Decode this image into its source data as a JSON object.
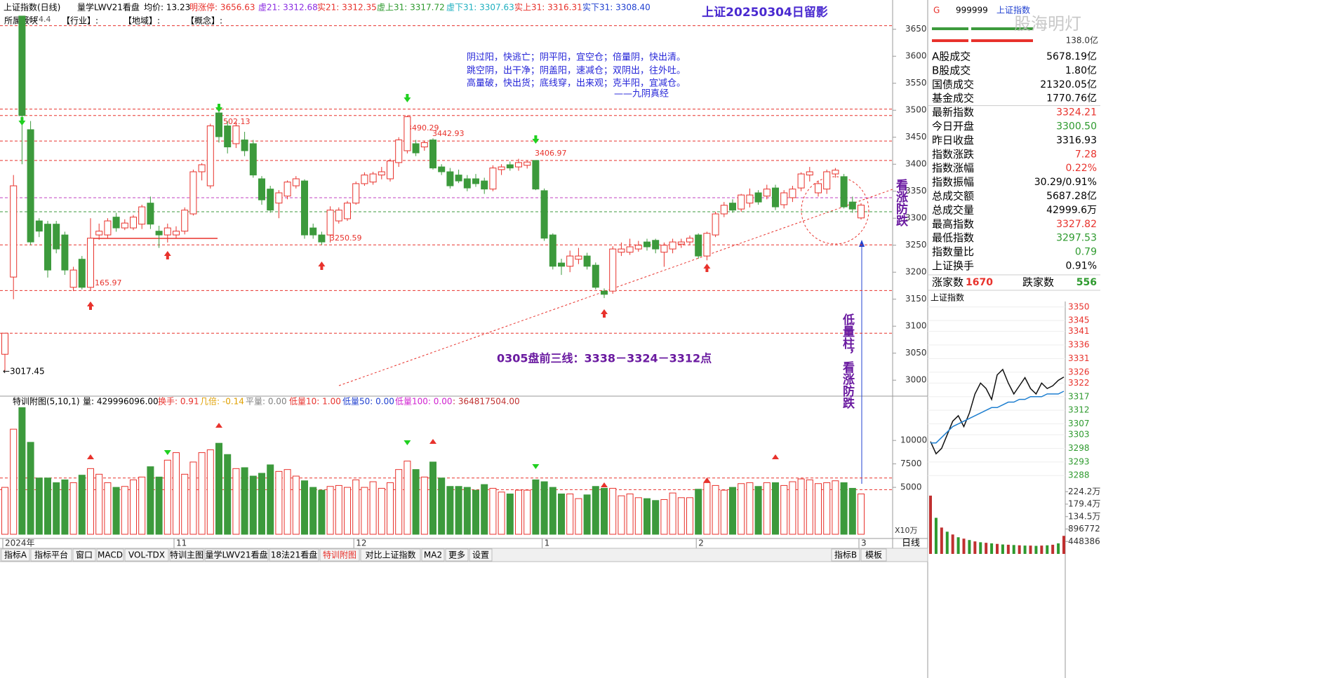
{
  "chart_data": {
    "type": "candlestick",
    "title": "上证20250304日留影",
    "header": [
      {
        "text": "上证指数(日线)",
        "color": "#000000"
      },
      {
        "text": "量学LWV21看盘",
        "color": "#000000"
      },
      {
        "text": "均价: 13.23",
        "color": "#000000"
      },
      {
        "text": "明涨停: 3656.63",
        "color": "#e8322c"
      },
      {
        "text": "虚21: 3312.68",
        "color": "#8a2be2"
      },
      {
        "text": "实21: 3312.35",
        "color": "#e8322c"
      },
      {
        "text": "虚上31: 3317.72",
        "color": "#2e9a2e"
      },
      {
        "text": "虚下31: 3307.63",
        "color": "#20b0c0"
      },
      {
        "text": "实上31: 3316.31",
        "color": "#e8322c"
      },
      {
        "text": "实下31: 3308.40",
        "color": "#2040d0"
      }
    ],
    "subheader": [
      "所属板块",
      "【行业】:",
      "【地域】:",
      "【概念】:"
    ],
    "annotations": [
      {
        "text": "阴过阳，快逃亡；阴平阳，宜空仓；倍量阴，快出清。",
        "color": "#2626d8"
      },
      {
        "text": "跳空阴，出干净；阴盖阳，速减仓；双阴出，往外吐。",
        "color": "#2626d8"
      },
      {
        "text": "高量破，快出货；底线穿，出来观；克半阳，宜减仓。",
        "color": "#2626d8"
      },
      {
        "text": "——九阴真经",
        "color": "#2626d8"
      },
      {
        "text": "0305盘前三线：3338－3324－3312点",
        "color": "#6a1aa0"
      },
      {
        "text": "看涨防跌",
        "color": "#6a1aa0"
      },
      {
        "text": "低量柱，看涨防跌",
        "color": "#6a1aa0"
      },
      {
        "text": "←3017.45",
        "color": "#000000"
      }
    ],
    "price_labels": [
      3502.13,
      3490.29,
      3442.93,
      3406.97,
      3250.59,
      3165.97,
      3674.4
    ],
    "ref_lines": [
      {
        "value": 3656.63,
        "color": "#e8322c"
      },
      {
        "value": 3502.13,
        "color": "#e8322c"
      },
      {
        "value": 3490.29,
        "color": "#e8322c"
      },
      {
        "value": 3442.93,
        "color": "#e8322c"
      },
      {
        "value": 3406.97,
        "color": "#e8322c"
      },
      {
        "value": 3338,
        "color": "#c040c0"
      },
      {
        "value": 3312,
        "color": "#3c9a3c"
      },
      {
        "value": 3250.59,
        "color": "#e8322c"
      },
      {
        "value": 3165.97,
        "color": "#e8322c"
      },
      {
        "value": 3087,
        "color": "#e8322c"
      }
    ],
    "up_color": "#e8322c",
    "down_color": "#3c9a3c",
    "ylim": [
      2973,
      3686
    ],
    "yticks": [
      3650,
      3600,
      3550,
      3500,
      3450,
      3400,
      3350,
      3300,
      3250,
      3200,
      3150,
      3100,
      3050,
      3000
    ],
    "categories": [
      "2024年",
      null,
      null,
      null,
      null,
      null,
      null,
      null,
      null,
      null,
      null,
      null,
      null,
      null,
      null,
      null,
      null,
      null,
      null,
      null,
      "11",
      null,
      null,
      null,
      null,
      null,
      null,
      null,
      null,
      null,
      null,
      null,
      null,
      null,
      null,
      null,
      null,
      null,
      null,
      null,
      null,
      "12",
      null,
      null,
      null,
      null,
      null,
      null,
      null,
      null,
      null,
      null,
      null,
      null,
      null,
      null,
      null,
      null,
      null,
      null,
      null,
      null,
      null,
      "1",
      null,
      null,
      null,
      null,
      null,
      null,
      null,
      null,
      null,
      null,
      null,
      null,
      null,
      null,
      null,
      null,
      null,
      "2",
      null,
      null,
      null,
      null,
      null,
      null,
      null,
      null,
      null,
      null,
      null,
      null,
      null,
      null,
      null,
      null,
      null,
      null,
      "3"
    ],
    "candles": [
      [
        3048,
        3087,
        3017.45,
        3087
      ],
      [
        3191,
        3380,
        3150,
        3360
      ],
      [
        3674.4,
        3674.4,
        3400,
        3490
      ],
      [
        3464,
        3480,
        3250,
        3256
      ],
      [
        3295,
        3300,
        3265,
        3276
      ],
      [
        3289,
        3295,
        3190,
        3204
      ],
      [
        3289,
        3295,
        3235,
        3243
      ],
      [
        3269,
        3275,
        3195,
        3204
      ],
      [
        3172,
        3210,
        3165,
        3204
      ],
      [
        3224,
        3230,
        3168,
        3172
      ],
      [
        3172,
        3300,
        3165.97,
        3263
      ],
      [
        3269,
        3290,
        3260,
        3276
      ],
      [
        3269,
        3300,
        3262,
        3295
      ],
      [
        3302,
        3310,
        3275,
        3282
      ],
      [
        3282,
        3298,
        3278,
        3291
      ],
      [
        3282,
        3306,
        3278,
        3302
      ],
      [
        3289,
        3325,
        3280,
        3321
      ],
      [
        3328,
        3340,
        3280,
        3289
      ],
      [
        3276,
        3286,
        3245,
        3269
      ],
      [
        3269,
        3290,
        3255,
        3282
      ],
      [
        3269,
        3285,
        3262,
        3276
      ],
      [
        3276,
        3320,
        3270,
        3315
      ],
      [
        3308,
        3390,
        3305,
        3386
      ],
      [
        3386,
        3402,
        3370,
        3399
      ],
      [
        3360,
        3475,
        3355,
        3471
      ],
      [
        3495,
        3502.13,
        3440,
        3451
      ],
      [
        3471,
        3480,
        3420,
        3432
      ],
      [
        3438,
        3478,
        3430,
        3471
      ],
      [
        3445,
        3460,
        3415,
        3425
      ],
      [
        3438,
        3445,
        3375,
        3380
      ],
      [
        3373,
        3378,
        3325,
        3334
      ],
      [
        3354,
        3360,
        3310,
        3315
      ],
      [
        3328,
        3352,
        3300,
        3347
      ],
      [
        3341,
        3370,
        3335,
        3367
      ],
      [
        3360,
        3378,
        3355,
        3373
      ],
      [
        3369,
        3372,
        3262,
        3269
      ],
      [
        3282,
        3290,
        3262,
        3269
      ],
      [
        3269,
        3275,
        3250.59,
        3256
      ],
      [
        3269,
        3322,
        3255,
        3315
      ],
      [
        3295,
        3320,
        3290,
        3315
      ],
      [
        3299,
        3332,
        3295,
        3328
      ],
      [
        3328,
        3368,
        3325,
        3364
      ],
      [
        3364,
        3385,
        3360,
        3380
      ],
      [
        3367,
        3386,
        3362,
        3382
      ],
      [
        3380,
        3395,
        3372,
        3386
      ],
      [
        3373,
        3410,
        3368,
        3406
      ],
      [
        3403,
        3450,
        3395,
        3445
      ],
      [
        3425,
        3490.29,
        3420,
        3488
      ],
      [
        3438,
        3445,
        3415,
        3421
      ],
      [
        3432,
        3442.93,
        3425,
        3440
      ],
      [
        3445,
        3448,
        3390,
        3393
      ],
      [
        3395,
        3400,
        3380,
        3386
      ],
      [
        3386,
        3393,
        3355,
        3360
      ],
      [
        3380,
        3390,
        3365,
        3369
      ],
      [
        3373,
        3380,
        3350,
        3356
      ],
      [
        3373,
        3382,
        3358,
        3364
      ],
      [
        3369,
        3375,
        3345,
        3354
      ],
      [
        3354,
        3398,
        3350,
        3393
      ],
      [
        3390,
        3400,
        3380,
        3395
      ],
      [
        3399,
        3405,
        3388,
        3393
      ],
      [
        3395,
        3410,
        3388,
        3403
      ],
      [
        3398,
        3406,
        3392,
        3404
      ],
      [
        3406.97,
        3406.97,
        3352,
        3354
      ],
      [
        3351,
        3355,
        3258,
        3263
      ],
      [
        3269,
        3272,
        3205,
        3211
      ],
      [
        3217,
        3225,
        3195,
        3211
      ],
      [
        3211,
        3240,
        3200,
        3230
      ],
      [
        3224,
        3245,
        3215,
        3230
      ],
      [
        3230,
        3236,
        3205,
        3211
      ],
      [
        3213,
        3218,
        3168,
        3172
      ],
      [
        3165,
        3170,
        3152,
        3159
      ],
      [
        3165,
        3248,
        3160,
        3243
      ],
      [
        3237,
        3255,
        3230,
        3243
      ],
      [
        3237,
        3262,
        3232,
        3247
      ],
      [
        3243,
        3258,
        3238,
        3250
      ],
      [
        3256,
        3262,
        3240,
        3247
      ],
      [
        3259,
        3262,
        3235,
        3243
      ],
      [
        3237,
        3255,
        3210,
        3250
      ],
      [
        3243,
        3262,
        3235,
        3256
      ],
      [
        3252,
        3262,
        3245,
        3256
      ],
      [
        3256,
        3268,
        3250,
        3263
      ],
      [
        3269,
        3272,
        3225,
        3230
      ],
      [
        3230,
        3275,
        3222,
        3272
      ],
      [
        3269,
        3312,
        3265,
        3308
      ],
      [
        3308,
        3330,
        3302,
        3324
      ],
      [
        3328,
        3335,
        3310,
        3315
      ],
      [
        3317,
        3345,
        3312,
        3343
      ],
      [
        3328,
        3355,
        3320,
        3343
      ],
      [
        3347,
        3352,
        3325,
        3330
      ],
      [
        3341,
        3362,
        3335,
        3354
      ],
      [
        3356,
        3362,
        3315,
        3321
      ],
      [
        3325,
        3352,
        3318,
        3347
      ],
      [
        3338,
        3360,
        3330,
        3354
      ],
      [
        3356,
        3385,
        3350,
        3382
      ],
      [
        3380,
        3395,
        3368,
        3386
      ],
      [
        3347,
        3370,
        3340,
        3364
      ],
      [
        3354,
        3390,
        3345,
        3386
      ],
      [
        3382,
        3393,
        3375,
        3389
      ],
      [
        3377,
        3382,
        3318,
        3321
      ],
      [
        3330,
        3340,
        3310,
        3316.93
      ],
      [
        3300.5,
        3327.82,
        3297.53,
        3324.21
      ]
    ],
    "volume": {
      "header": [
        {
          "text": "特训附图(5,10,1)",
          "color": "#000000"
        },
        {
          "text": "量: 429996096.00",
          "color": "#000000"
        },
        {
          "text": "换手: 0.91",
          "color": "#e8322c"
        },
        {
          "text": "几倍: -0.14",
          "color": "#e0a000"
        },
        {
          "text": "平量: 0.00",
          "color": "#808080"
        },
        {
          "text": "低量10: 1.00",
          "color": "#e8322c"
        },
        {
          "text": "低量50: 0.00",
          "color": "#2040d0"
        },
        {
          "text": "低量100: 0.00",
          "color": "#d020d0"
        },
        {
          "text": ": 364817504.00",
          "color": "#c03030"
        }
      ],
      "ylim": [
        0,
        13600
      ],
      "yticks": [
        10000,
        7500,
        5000
      ],
      "unit": "X10万",
      "ref_lines": [
        6000,
        4750
      ],
      "values": [
        5000,
        11200,
        13500,
        9800,
        6000,
        6000,
        5500,
        5800,
        5500,
        6300,
        7000,
        6400,
        5500,
        5000,
        5100,
        5800,
        6100,
        7200,
        6100,
        7900,
        8700,
        6400,
        7700,
        8700,
        9000,
        9700,
        8500,
        7000,
        7100,
        6200,
        6500,
        7400,
        6700,
        6900,
        6200,
        5700,
        5000,
        4700,
        5100,
        5200,
        5000,
        5800,
        5000,
        5600,
        4900,
        5500,
        6900,
        7800,
        6900,
        6100,
        7700,
        6000,
        5100,
        5100,
        5000,
        4700,
        5300,
        4900,
        4500,
        4300,
        4700,
        4700,
        5800,
        5600,
        5000,
        4300,
        4300,
        3800,
        4200,
        5100,
        4900,
        4900,
        4100,
        4300,
        3900,
        3800,
        3600,
        3700,
        4400,
        3900,
        3900,
        4800,
        5500,
        5200,
        4700,
        5000,
        5400,
        5500,
        5100,
        5500,
        5500,
        5200,
        5600,
        5900,
        5800,
        5400,
        5500,
        5700,
        5500,
        4900,
        4300
      ]
    },
    "right_panel": {
      "code": "999999",
      "name": "上证指数",
      "marker": "G",
      "watermark": "股海明灯",
      "amount": "138.0亿",
      "rows": [
        {
          "label": "A股成交",
          "value": "5678.19亿",
          "color": "#000000"
        },
        {
          "label": "B股成交",
          "value": "1.80亿",
          "color": "#000000"
        },
        {
          "label": "国债成交",
          "value": "21320.05亿",
          "color": "#000000"
        },
        {
          "label": "基金成交",
          "value": "1770.76亿",
          "color": "#000000"
        },
        {
          "label": "最新指数",
          "value": "3324.21",
          "color": "#e8322c"
        },
        {
          "label": "今日开盘",
          "value": "3300.50",
          "color": "#2e9a2e"
        },
        {
          "label": "昨日收盘",
          "value": "3316.93",
          "color": "#000000"
        },
        {
          "label": "指数涨跌",
          "value": "7.28",
          "color": "#e8322c"
        },
        {
          "label": "指数涨幅",
          "value": "0.22%",
          "color": "#e8322c"
        },
        {
          "label": "指数振幅",
          "value": "30.29/0.91%",
          "color": "#000000"
        },
        {
          "label": "总成交额",
          "value": "5687.28亿",
          "color": "#000000"
        },
        {
          "label": "总成交量",
          "value": "42999.6万",
          "color": "#000000"
        },
        {
          "label": "最高指数",
          "value": "3327.82",
          "color": "#e8322c"
        },
        {
          "label": "最低指数",
          "value": "3297.53",
          "color": "#2e9a2e"
        },
        {
          "label": "指数量比",
          "value": "0.79",
          "color": "#2e9a2e"
        },
        {
          "label": "上证换手",
          "value": "0.91%",
          "color": "#000000"
        }
      ],
      "breadth": [
        {
          "label": "涨家数",
          "value": 1670,
          "color": "#e8322c"
        },
        {
          "label": "跌家数",
          "value": 556,
          "color": "#2e9a2e"
        }
      ],
      "intraday": {
        "title": "上证指数",
        "ylim": [
          3286,
          3352
        ],
        "yticks": [
          3350,
          3345,
          3341,
          3336,
          3331,
          3326,
          3322,
          3317,
          3312,
          3307,
          3303,
          3298,
          3293,
          3288
        ],
        "price": [
          3300.5,
          3296,
          3298,
          3303,
          3308,
          3310,
          3306,
          3311,
          3318,
          3322,
          3320,
          3316,
          3325,
          3327,
          3322,
          3318,
          3321,
          3324,
          3320,
          3318,
          3322,
          3320,
          3321,
          3323,
          3324.21
        ],
        "avg": [
          3300,
          3300,
          3302,
          3304,
          3306,
          3307,
          3308,
          3309,
          3310,
          3311,
          3312,
          3313,
          3313,
          3314,
          3315,
          3315,
          3316,
          3316,
          3317,
          3317,
          3317,
          3318,
          3318,
          3318,
          3319
        ],
        "vol_ylim": [
          0,
          2400000
        ],
        "vol_ticks": [
          {
            "value": 2242000,
            "label": "224.2万"
          },
          {
            "value": 1794000,
            "label": "179.4万"
          },
          {
            "value": 1345000,
            "label": "134.5万"
          },
          896772,
          448386
        ],
        "volume": [
          2100000,
          1300000,
          950000,
          800000,
          700000,
          600000,
          550000,
          500000,
          450000,
          420000,
          400000,
          380000,
          360000,
          340000,
          330000,
          320000,
          310000,
          300000,
          300000,
          290000,
          300000,
          310000,
          330000,
          380000,
          650000
        ]
      }
    },
    "tabs": [
      {
        "label": "指标A"
      },
      {
        "label": "指标平台"
      },
      {
        "label": "窗口"
      },
      {
        "label": "MACD"
      },
      {
        "label": "VOL-TDX"
      },
      {
        "label": "特训主图"
      },
      {
        "label": "量学LWV21看盘"
      },
      {
        "label": "18法21看盘"
      },
      {
        "label": "特训附图",
        "active": true
      },
      {
        "label": "对比上证指数"
      },
      {
        "label": "MA2"
      },
      {
        "label": "更多"
      },
      {
        "label": "设置"
      },
      {
        "label": "指标B"
      },
      {
        "label": "模板"
      }
    ],
    "period": "日线"
  }
}
